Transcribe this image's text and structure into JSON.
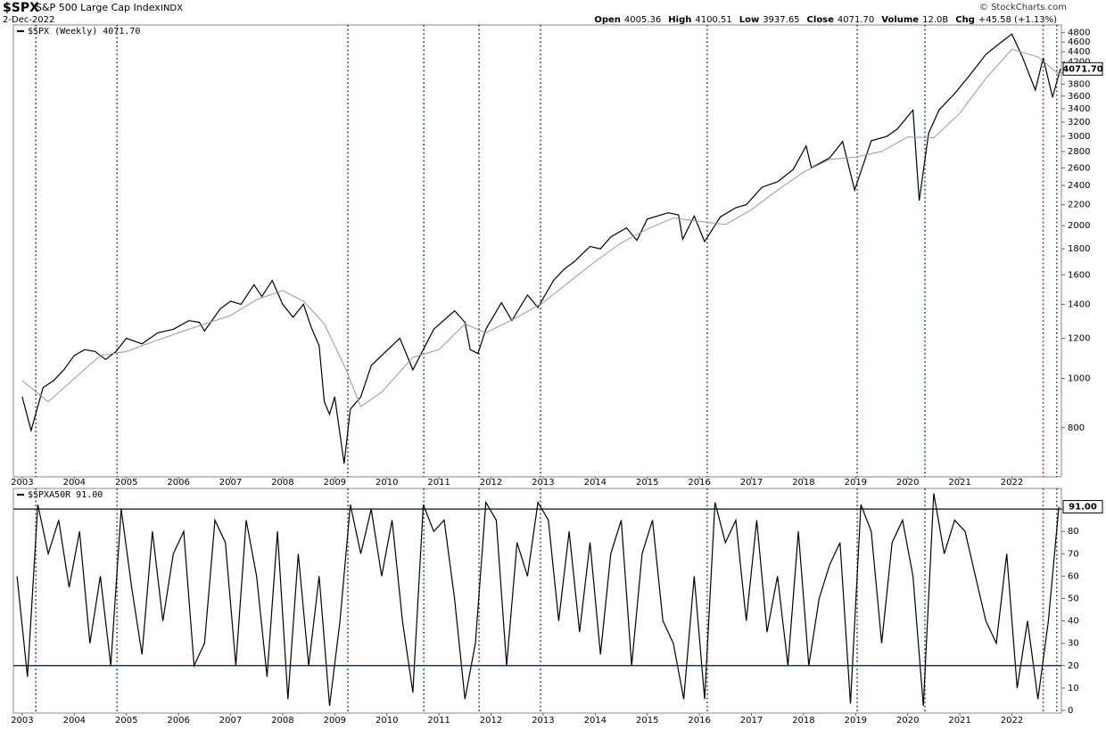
{
  "header": {
    "symbol": "$SPX",
    "name": "S&P 500 Large Cap Index",
    "exchange": "INDX",
    "date": "2-Dec-2022",
    "copyright": "© StockCharts.com",
    "quote": [
      {
        "label": "Open",
        "value": "4005.36"
      },
      {
        "label": "High",
        "value": "4100.51"
      },
      {
        "label": "Low",
        "value": "3937.65"
      },
      {
        "label": "Close",
        "value": "4071.70"
      },
      {
        "label": "Volume",
        "value": "12.0B"
      },
      {
        "label": "Chg",
        "value": "+45.58 (+1.13%)"
      }
    ]
  },
  "vlines": [
    {
      "x": 2003.26,
      "color": "#1f3a6e"
    },
    {
      "x": 2004.82,
      "color": "#1f3a6e"
    },
    {
      "x": 2009.25,
      "color": "#1f3a6e"
    },
    {
      "x": 2010.71,
      "color": "#1f3a6e"
    },
    {
      "x": 2011.77,
      "color": "#1f3a6e"
    },
    {
      "x": 2012.95,
      "color": "#1f3a6e"
    },
    {
      "x": 2016.15,
      "color": "#1f3a6e"
    },
    {
      "x": 2019.03,
      "color": "#1f3a6e"
    },
    {
      "x": 2020.33,
      "color": "#1f3a6e"
    },
    {
      "x": 2022.6,
      "color": "#cc0000"
    },
    {
      "x": 2022.86,
      "color": "#1f3a6e"
    }
  ],
  "chart_data": [
    {
      "type": "line",
      "log": true,
      "xlim": [
        2002.83,
        2022.95
      ],
      "ylim": [
        640,
        4970
      ],
      "xticks": [
        2003,
        2004,
        2005,
        2006,
        2007,
        2008,
        2009,
        2010,
        2011,
        2012,
        2013,
        2014,
        2015,
        2016,
        2017,
        2018,
        2019,
        2020,
        2021,
        2022
      ],
      "yticks": [
        800,
        1000,
        1200,
        1400,
        1600,
        1800,
        2000,
        2200,
        2400,
        2600,
        2800,
        3000,
        3200,
        3400,
        3600,
        3800,
        4000,
        4200,
        4400,
        4600,
        4800
      ],
      "series": [
        {
          "name": "$SPX (Weekly)",
          "last_label": "4071.70",
          "color": "#000000",
          "x": [
            2003.0,
            2003.17,
            2003.4,
            2003.6,
            2003.8,
            2004.0,
            2004.2,
            2004.4,
            2004.6,
            2004.8,
            2005.0,
            2005.3,
            2005.6,
            2005.9,
            2006.2,
            2006.4,
            2006.5,
            2006.8,
            2007.0,
            2007.2,
            2007.45,
            2007.6,
            2007.8,
            2008.0,
            2008.2,
            2008.4,
            2008.55,
            2008.7,
            2008.8,
            2008.9,
            2009.0,
            2009.18,
            2009.3,
            2009.5,
            2009.7,
            2009.9,
            2010.25,
            2010.5,
            2010.7,
            2010.9,
            2011.3,
            2011.5,
            2011.6,
            2011.75,
            2011.9,
            2012.2,
            2012.4,
            2012.7,
            2012.9,
            2013.2,
            2013.4,
            2013.6,
            2013.9,
            2014.1,
            2014.3,
            2014.6,
            2014.8,
            2015.0,
            2015.4,
            2015.6,
            2015.68,
            2015.9,
            2016.1,
            2016.4,
            2016.7,
            2016.9,
            2017.2,
            2017.5,
            2017.8,
            2018.05,
            2018.15,
            2018.5,
            2018.75,
            2018.98,
            2019.3,
            2019.6,
            2019.8,
            2020.1,
            2020.22,
            2020.4,
            2020.6,
            2020.9,
            2021.2,
            2021.5,
            2021.8,
            2022.0,
            2022.2,
            2022.45,
            2022.6,
            2022.78,
            2022.93
          ],
          "values": [
            920,
            790,
            960,
            990,
            1040,
            1110,
            1140,
            1130,
            1090,
            1130,
            1200,
            1170,
            1230,
            1250,
            1300,
            1290,
            1240,
            1370,
            1420,
            1400,
            1530,
            1450,
            1560,
            1400,
            1320,
            1400,
            1260,
            1160,
            900,
            850,
            920,
            680,
            870,
            920,
            1060,
            1110,
            1200,
            1040,
            1140,
            1250,
            1360,
            1290,
            1140,
            1120,
            1250,
            1410,
            1300,
            1460,
            1380,
            1560,
            1640,
            1700,
            1820,
            1800,
            1900,
            1980,
            1870,
            2060,
            2120,
            2100,
            1880,
            2090,
            1860,
            2080,
            2170,
            2200,
            2380,
            2440,
            2580,
            2870,
            2600,
            2720,
            2930,
            2350,
            2940,
            3000,
            3100,
            3380,
            2240,
            3040,
            3380,
            3640,
            3970,
            4350,
            4600,
            4770,
            4300,
            3700,
            4280,
            3580,
            4071.7
          ]
        },
        {
          "color": "#999999",
          "x": [
            2003.0,
            2003.5,
            2004.0,
            2004.5,
            2005.0,
            2005.5,
            2006.0,
            2006.5,
            2007.0,
            2007.5,
            2008.0,
            2008.4,
            2008.8,
            2009.2,
            2009.5,
            2009.9,
            2010.5,
            2011.0,
            2011.5,
            2011.9,
            2012.5,
            2013.0,
            2013.5,
            2014.0,
            2014.5,
            2015.0,
            2015.5,
            2016.0,
            2016.5,
            2017.0,
            2017.5,
            2018.0,
            2018.5,
            2019.0,
            2019.5,
            2020.0,
            2020.5,
            2021.0,
            2021.5,
            2022.0,
            2022.5,
            2022.93
          ],
          "values": [
            990,
            900,
            1000,
            1110,
            1130,
            1180,
            1230,
            1280,
            1330,
            1430,
            1490,
            1420,
            1280,
            1050,
            880,
            940,
            1100,
            1140,
            1280,
            1230,
            1320,
            1410,
            1550,
            1700,
            1850,
            1970,
            2070,
            2040,
            2010,
            2150,
            2350,
            2550,
            2700,
            2730,
            2800,
            2990,
            2980,
            3330,
            3900,
            4450,
            4300,
            3950
          ]
        }
      ]
    },
    {
      "type": "line",
      "xlim": [
        2002.83,
        2022.95
      ],
      "ylim": [
        -1.2,
        99.2
      ],
      "xticks": [
        2003,
        2004,
        2005,
        2006,
        2007,
        2008,
        2009,
        2010,
        2011,
        2012,
        2013,
        2014,
        2015,
        2016,
        2017,
        2018,
        2019,
        2020,
        2021,
        2022
      ],
      "yticks": [
        0,
        10,
        20,
        30,
        40,
        50,
        60,
        70,
        80,
        90
      ],
      "hlines": [
        90,
        20
      ],
      "series": [
        {
          "name": "$SPXA50R",
          "last_label": "91.00",
          "color": "#000000",
          "x": [
            2002.9,
            2003.1,
            2003.3,
            2003.5,
            2003.7,
            2003.9,
            2004.1,
            2004.3,
            2004.5,
            2004.7,
            2004.9,
            2005.1,
            2005.3,
            2005.5,
            2005.7,
            2005.9,
            2006.1,
            2006.3,
            2006.5,
            2006.7,
            2006.9,
            2007.1,
            2007.3,
            2007.5,
            2007.7,
            2007.9,
            2008.1,
            2008.3,
            2008.5,
            2008.7,
            2008.9,
            2009.1,
            2009.3,
            2009.5,
            2009.7,
            2009.9,
            2010.1,
            2010.3,
            2010.5,
            2010.7,
            2010.9,
            2011.1,
            2011.3,
            2011.5,
            2011.7,
            2011.9,
            2012.1,
            2012.3,
            2012.5,
            2012.7,
            2012.9,
            2013.1,
            2013.3,
            2013.5,
            2013.7,
            2013.9,
            2014.1,
            2014.3,
            2014.5,
            2014.7,
            2014.9,
            2015.1,
            2015.3,
            2015.5,
            2015.7,
            2015.9,
            2016.1,
            2016.3,
            2016.5,
            2016.7,
            2016.9,
            2017.1,
            2017.3,
            2017.5,
            2017.7,
            2017.9,
            2018.1,
            2018.3,
            2018.5,
            2018.7,
            2018.9,
            2019.1,
            2019.3,
            2019.5,
            2019.7,
            2019.9,
            2020.1,
            2020.3,
            2020.5,
            2020.7,
            2020.9,
            2021.1,
            2021.3,
            2021.5,
            2021.7,
            2021.9,
            2022.1,
            2022.3,
            2022.5,
            2022.7,
            2022.9
          ],
          "values": [
            60,
            15,
            92,
            70,
            85,
            55,
            80,
            30,
            60,
            20,
            90,
            55,
            25,
            80,
            40,
            70,
            80,
            20,
            30,
            85,
            75,
            20,
            85,
            60,
            15,
            80,
            5,
            70,
            20,
            60,
            2,
            40,
            92,
            70,
            90,
            60,
            85,
            40,
            8,
            92,
            80,
            85,
            50,
            5,
            30,
            93,
            85,
            20,
            75,
            60,
            93,
            85,
            40,
            80,
            35,
            75,
            25,
            70,
            85,
            20,
            70,
            85,
            40,
            30,
            5,
            60,
            5,
            93,
            75,
            85,
            40,
            85,
            35,
            60,
            20,
            80,
            20,
            50,
            65,
            75,
            3,
            92,
            80,
            30,
            75,
            85,
            60,
            2,
            97,
            70,
            85,
            80,
            60,
            40,
            30,
            70,
            10,
            40,
            5,
            40,
            91
          ]
        }
      ]
    }
  ]
}
